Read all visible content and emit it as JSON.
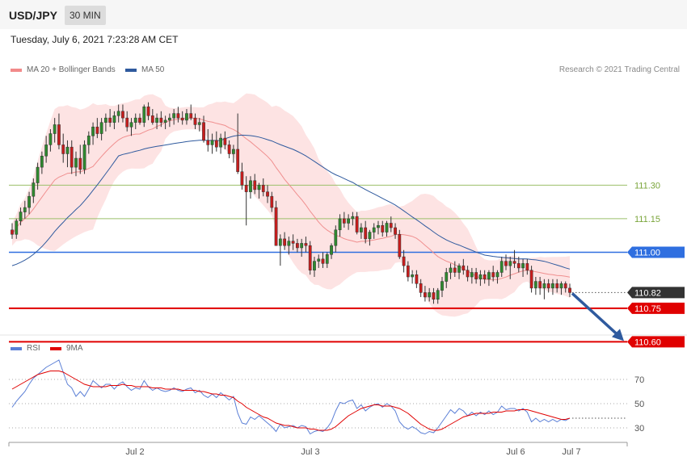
{
  "header": {
    "symbol": "USD/JPY",
    "timeframe": "30 MIN"
  },
  "datetime": "Tuesday, July 6, 2021 7:23:28 AM CET",
  "legend": {
    "ma20": {
      "label": "MA 20 + Bollinger Bands",
      "color": "#f28a8a"
    },
    "ma50": {
      "label": "MA 50",
      "color": "#2f5a9e"
    }
  },
  "credit": "Research © 2021 Trading Central",
  "rsi_legend": {
    "rsi": {
      "label": "RSI",
      "color": "#5b7fd6"
    },
    "ma9": {
      "label": "9MA",
      "color": "#e00000"
    }
  },
  "chart_data": [
    {
      "type": "line",
      "panel": "price",
      "title": "",
      "ylim": [
        110.55,
        111.7
      ],
      "x_tick_labels": [
        "Jul 2",
        "Jul 3",
        "Jul 6",
        "Jul 7"
      ],
      "levels": [
        {
          "value": 111.3,
          "label": "111.30",
          "style": "thin-line",
          "color": "#9bbf6a"
        },
        {
          "value": 111.15,
          "label": "111.15",
          "style": "thin-line",
          "color": "#9bbf6a"
        },
        {
          "value": 111.0,
          "label": "111.00",
          "style": "line-badge",
          "color": "#2f6fe0"
        },
        {
          "value": 110.82,
          "label": "110.82",
          "style": "dotted-badge",
          "color": "#333333"
        },
        {
          "value": 110.75,
          "label": "110.75",
          "style": "line-badge",
          "color": "#e00000"
        },
        {
          "value": 110.6,
          "label": "110.60",
          "style": "line-badge",
          "color": "#e00000"
        }
      ],
      "forecast_arrow": {
        "from": 110.82,
        "to": 110.6,
        "color": "#2f5a9e"
      },
      "candles_ohlc": [
        [
          111.1,
          111.13,
          111.06,
          111.08
        ],
        [
          111.08,
          111.15,
          111.06,
          111.14
        ],
        [
          111.14,
          111.2,
          111.12,
          111.18
        ],
        [
          111.18,
          111.23,
          111.15,
          111.2
        ],
        [
          111.2,
          111.27,
          111.17,
          111.25
        ],
        [
          111.25,
          111.33,
          111.22,
          111.31
        ],
        [
          111.31,
          111.4,
          111.28,
          111.38
        ],
        [
          111.38,
          111.45,
          111.35,
          111.43
        ],
        [
          111.43,
          111.52,
          111.4,
          111.48
        ],
        [
          111.48,
          111.55,
          111.45,
          111.53
        ],
        [
          111.53,
          111.6,
          111.49,
          111.57
        ],
        [
          111.57,
          111.62,
          111.46,
          111.48
        ],
        [
          111.48,
          111.53,
          111.4,
          111.44
        ],
        [
          111.44,
          111.5,
          111.38,
          111.47
        ],
        [
          111.47,
          111.5,
          111.35,
          111.38
        ],
        [
          111.38,
          111.45,
          111.34,
          111.42
        ],
        [
          111.42,
          111.48,
          111.35,
          111.37
        ],
        [
          111.37,
          111.5,
          111.35,
          111.48
        ],
        [
          111.48,
          111.54,
          111.44,
          111.52
        ],
        [
          111.52,
          111.58,
          111.48,
          111.56
        ],
        [
          111.56,
          111.6,
          111.51,
          111.53
        ],
        [
          111.53,
          111.6,
          111.5,
          111.58
        ],
        [
          111.58,
          111.62,
          111.54,
          111.6
        ],
        [
          111.6,
          111.64,
          111.56,
          111.58
        ],
        [
          111.58,
          111.63,
          111.55,
          111.61
        ],
        [
          111.61,
          111.66,
          111.58,
          111.63
        ],
        [
          111.63,
          111.66,
          111.58,
          111.6
        ],
        [
          111.6,
          111.63,
          111.54,
          111.56
        ],
        [
          111.56,
          111.6,
          111.52,
          111.58
        ],
        [
          111.58,
          111.62,
          111.55,
          111.6
        ],
        [
          111.6,
          111.62,
          111.57,
          111.58
        ],
        [
          111.58,
          111.66,
          111.56,
          111.65
        ],
        [
          111.65,
          111.67,
          111.59,
          111.61
        ],
        [
          111.61,
          111.64,
          111.57,
          111.58
        ],
        [
          111.58,
          111.62,
          111.55,
          111.6
        ],
        [
          111.6,
          111.63,
          111.56,
          111.58
        ],
        [
          111.58,
          111.61,
          111.55,
          111.59
        ],
        [
          111.59,
          111.62,
          111.56,
          111.6
        ],
        [
          111.6,
          111.64,
          111.57,
          111.62
        ],
        [
          111.62,
          111.65,
          111.58,
          111.6
        ],
        [
          111.6,
          111.63,
          111.57,
          111.59
        ],
        [
          111.59,
          111.64,
          111.57,
          111.62
        ],
        [
          111.62,
          111.66,
          111.59,
          111.6
        ],
        [
          111.6,
          111.62,
          111.55,
          111.57
        ],
        [
          111.57,
          111.6,
          111.54,
          111.58
        ],
        [
          111.58,
          111.61,
          111.49,
          111.5
        ],
        [
          111.5,
          111.55,
          111.45,
          111.48
        ],
        [
          111.48,
          111.53,
          111.44,
          111.5
        ],
        [
          111.5,
          111.54,
          111.45,
          111.47
        ],
        [
          111.47,
          111.53,
          111.44,
          111.51
        ],
        [
          111.51,
          111.54,
          111.46,
          111.48
        ],
        [
          111.48,
          111.5,
          111.42,
          111.44
        ],
        [
          111.44,
          111.48,
          111.4,
          111.46
        ],
        [
          111.46,
          111.62,
          111.35,
          111.36
        ],
        [
          111.36,
          111.4,
          111.28,
          111.3
        ],
        [
          111.3,
          111.34,
          111.12,
          111.27
        ],
        [
          111.27,
          111.34,
          111.24,
          111.32
        ],
        [
          111.32,
          111.35,
          111.26,
          111.28
        ],
        [
          111.28,
          111.31,
          111.24,
          111.3
        ],
        [
          111.3,
          111.33,
          111.25,
          111.27
        ],
        [
          111.27,
          111.3,
          111.22,
          111.25
        ],
        [
          111.25,
          111.27,
          111.18,
          111.2
        ],
        [
          111.2,
          111.23,
          111.08,
          111.03
        ],
        [
          111.03,
          111.08,
          110.94,
          111.06
        ],
        [
          111.06,
          111.09,
          111.01,
          111.03
        ],
        [
          111.03,
          111.07,
          110.99,
          111.05
        ],
        [
          111.05,
          111.08,
          111.01,
          111.04
        ],
        [
          111.04,
          111.06,
          111.0,
          111.02
        ],
        [
          111.02,
          111.06,
          110.98,
          111.04
        ],
        [
          111.04,
          111.07,
          111.0,
          111.03
        ],
        [
          111.03,
          111.05,
          110.9,
          110.92
        ],
        [
          110.92,
          110.98,
          110.89,
          110.96
        ],
        [
          110.96,
          110.99,
          110.93,
          110.97
        ],
        [
          110.97,
          111.0,
          110.93,
          110.95
        ],
        [
          110.95,
          111.0,
          110.93,
          110.99
        ],
        [
          110.99,
          111.04,
          110.97,
          111.03
        ],
        [
          111.03,
          111.12,
          111.0,
          111.1
        ],
        [
          111.1,
          111.17,
          111.07,
          111.15
        ],
        [
          111.15,
          111.18,
          111.11,
          111.13
        ],
        [
          111.13,
          111.17,
          111.1,
          111.15
        ],
        [
          111.15,
          111.18,
          111.12,
          111.16
        ],
        [
          111.16,
          111.18,
          111.08,
          111.09
        ],
        [
          111.09,
          111.13,
          111.06,
          111.11
        ],
        [
          111.11,
          111.14,
          111.04,
          111.06
        ],
        [
          111.06,
          111.1,
          111.03,
          111.09
        ],
        [
          111.09,
          111.13,
          111.06,
          111.11
        ],
        [
          111.11,
          111.14,
          111.08,
          111.12
        ],
        [
          111.12,
          111.14,
          111.07,
          111.09
        ],
        [
          111.09,
          111.14,
          111.07,
          111.13
        ],
        [
          111.13,
          111.16,
          111.09,
          111.11
        ],
        [
          111.11,
          111.13,
          111.06,
          111.08
        ],
        [
          111.08,
          111.1,
          110.97,
          110.98
        ],
        [
          110.98,
          111.01,
          110.91,
          110.94
        ],
        [
          110.94,
          110.96,
          110.87,
          110.89
        ],
        [
          110.89,
          110.92,
          110.86,
          110.9
        ],
        [
          110.9,
          110.92,
          110.84,
          110.86
        ],
        [
          110.86,
          110.88,
          110.8,
          110.82
        ],
        [
          110.82,
          110.85,
          110.78,
          110.8
        ],
        [
          110.8,
          110.84,
          110.78,
          110.82
        ],
        [
          110.82,
          110.84,
          110.77,
          110.79
        ],
        [
          110.79,
          110.84,
          110.77,
          110.83
        ],
        [
          110.83,
          110.89,
          110.8,
          110.87
        ],
        [
          110.87,
          110.93,
          110.84,
          110.91
        ],
        [
          110.91,
          110.95,
          110.88,
          110.93
        ],
        [
          110.93,
          110.96,
          110.89,
          110.91
        ],
        [
          110.91,
          110.95,
          110.88,
          110.94
        ],
        [
          110.94,
          110.97,
          110.9,
          110.92
        ],
        [
          110.92,
          110.94,
          110.87,
          110.89
        ],
        [
          110.89,
          110.93,
          110.86,
          110.91
        ],
        [
          110.91,
          110.93,
          110.86,
          110.88
        ],
        [
          110.88,
          110.92,
          110.85,
          110.9
        ],
        [
          110.9,
          110.92,
          110.86,
          110.88
        ],
        [
          110.88,
          110.92,
          110.85,
          110.91
        ],
        [
          110.91,
          110.94,
          110.87,
          110.89
        ],
        [
          110.89,
          110.92,
          110.86,
          110.91
        ],
        [
          110.91,
          110.98,
          110.89,
          110.96
        ],
        [
          110.96,
          110.99,
          110.92,
          110.94
        ],
        [
          110.94,
          110.98,
          110.88,
          110.96
        ],
        [
          110.96,
          111.01,
          110.93,
          110.95
        ],
        [
          110.95,
          110.98,
          110.91,
          110.93
        ],
        [
          110.93,
          110.97,
          110.89,
          110.95
        ],
        [
          110.95,
          110.97,
          110.9,
          110.92
        ],
        [
          110.92,
          110.94,
          110.82,
          110.84
        ],
        [
          110.84,
          110.89,
          110.81,
          110.87
        ],
        [
          110.87,
          110.89,
          110.81,
          110.84
        ],
        [
          110.84,
          110.88,
          110.79,
          110.86
        ],
        [
          110.86,
          110.88,
          110.82,
          110.84
        ],
        [
          110.84,
          110.88,
          110.81,
          110.86
        ],
        [
          110.86,
          110.88,
          110.82,
          110.84
        ],
        [
          110.84,
          110.87,
          110.81,
          110.86
        ],
        [
          110.86,
          110.87,
          110.82,
          110.84
        ],
        [
          110.84,
          110.86,
          110.8,
          110.82
        ]
      ]
    },
    {
      "type": "line",
      "panel": "rsi",
      "title": "",
      "ylim": [
        20,
        90
      ],
      "y_ticks": [
        30,
        50,
        70
      ],
      "last_value": 38,
      "series": [
        {
          "name": "RSI",
          "color": "#5b7fd6",
          "values": [
            47,
            52,
            56,
            60,
            66,
            71,
            74,
            77,
            80,
            82,
            84,
            86,
            76,
            66,
            63,
            56,
            60,
            56,
            62,
            69,
            66,
            63,
            66,
            66,
            62,
            66,
            68,
            64,
            61,
            63,
            62,
            69,
            64,
            61,
            63,
            61,
            60,
            61,
            63,
            61,
            60,
            62,
            63,
            59,
            61,
            57,
            55,
            58,
            55,
            59,
            56,
            53,
            56,
            42,
            34,
            33,
            39,
            37,
            40,
            37,
            34,
            31,
            27,
            33,
            30,
            31,
            32,
            30,
            32,
            31,
            25,
            27,
            28,
            27,
            30,
            35,
            44,
            51,
            50,
            52,
            53,
            46,
            49,
            44,
            47,
            49,
            50,
            47,
            50,
            48,
            44,
            35,
            31,
            29,
            31,
            29,
            26,
            25,
            27,
            26,
            30,
            35,
            40,
            45,
            42,
            46,
            44,
            40,
            43,
            40,
            43,
            41,
            44,
            41,
            43,
            48,
            45,
            46,
            46,
            44,
            46,
            43,
            35,
            38,
            35,
            37,
            35,
            37,
            35,
            37,
            36,
            38
          ]
        },
        {
          "name": "9MA",
          "color": "#e00000",
          "values": [
            62,
            64,
            66,
            68,
            70,
            72,
            74,
            75,
            76,
            77,
            77,
            77,
            76,
            74,
            72,
            70,
            68,
            66,
            65,
            64,
            64,
            64,
            64,
            65,
            65,
            65,
            66,
            65,
            65,
            64,
            64,
            64,
            64,
            63,
            63,
            63,
            62,
            62,
            62,
            62,
            61,
            61,
            61,
            61,
            60,
            60,
            59,
            58,
            58,
            57,
            57,
            56,
            55,
            52,
            50,
            47,
            45,
            43,
            41,
            39,
            38,
            36,
            34,
            33,
            32,
            32,
            31,
            30,
            30,
            30,
            29,
            29,
            28,
            28,
            28,
            29,
            31,
            34,
            37,
            40,
            42,
            44,
            46,
            47,
            48,
            49,
            49,
            48,
            48,
            48,
            47,
            46,
            44,
            42,
            39,
            36,
            33,
            31,
            29,
            28,
            28,
            29,
            31,
            33,
            35,
            37,
            39,
            40,
            41,
            42,
            42,
            42,
            42,
            43,
            43,
            43,
            44,
            44,
            44,
            45,
            45,
            45,
            44,
            43,
            42,
            41,
            40,
            39,
            38,
            37,
            37,
            38
          ]
        }
      ]
    }
  ]
}
